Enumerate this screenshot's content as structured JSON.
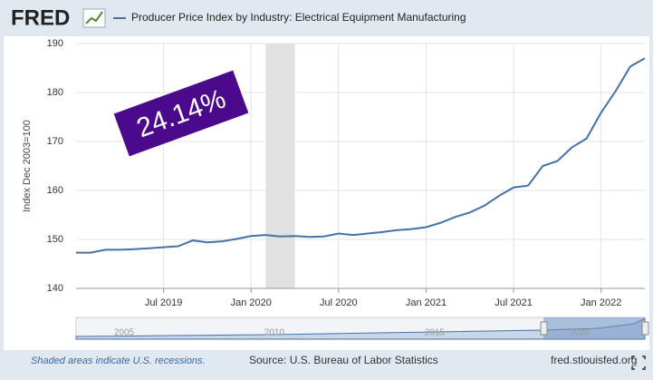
{
  "logo": "FRED",
  "chart_data": {
    "type": "line",
    "title": "Producer Price Index by Industry: Electrical Equipment Manufacturing",
    "y_label": "Index Dec 2003=100",
    "annotation": "24.14%",
    "x": [
      "2019-01",
      "2019-02",
      "2019-03",
      "2019-04",
      "2019-05",
      "2019-06",
      "2019-07",
      "2019-08",
      "2019-09",
      "2019-10",
      "2019-11",
      "2019-12",
      "2020-01",
      "2020-02",
      "2020-03",
      "2020-04",
      "2020-05",
      "2020-06",
      "2020-07",
      "2020-08",
      "2020-09",
      "2020-10",
      "2020-11",
      "2020-12",
      "2021-01",
      "2021-02",
      "2021-03",
      "2021-04",
      "2021-05",
      "2021-06",
      "2021-07",
      "2021-08",
      "2021-09",
      "2021-10",
      "2021-11",
      "2021-12",
      "2022-01",
      "2022-02",
      "2022-03",
      "2022-04"
    ],
    "series": [
      {
        "name": "Producer Price Index by Industry: Electrical Equipment Manufacturing",
        "color": "#4572a7",
        "values": [
          147.3,
          147.3,
          147.9,
          147.9,
          148.0,
          148.2,
          148.4,
          148.6,
          149.8,
          149.4,
          149.6,
          150.1,
          150.7,
          150.9,
          150.6,
          150.7,
          150.5,
          150.6,
          151.2,
          150.9,
          151.2,
          151.5,
          151.9,
          152.1,
          152.5,
          153.4,
          154.6,
          155.5,
          156.9,
          158.9,
          160.6,
          161.0,
          165.0,
          166.0,
          168.8,
          170.6,
          175.9,
          180.3,
          185.3,
          187.0
        ]
      }
    ],
    "xlim": [
      "2019-01",
      "2022-04"
    ],
    "xticks": [
      {
        "value": "2019-07",
        "label": "Jul 2019"
      },
      {
        "value": "2020-01",
        "label": "Jan 2020"
      },
      {
        "value": "2020-07",
        "label": "Jul 2020"
      },
      {
        "value": "2021-01",
        "label": "Jan 2021"
      },
      {
        "value": "2021-07",
        "label": "Jul 2021"
      },
      {
        "value": "2022-01",
        "label": "Jan 2022"
      }
    ],
    "ylim": [
      140,
      190
    ],
    "yticks": [
      140,
      150,
      160,
      170,
      180,
      190
    ],
    "grid": true,
    "recessions": [
      {
        "start": "2020-02",
        "end": "2020-04"
      }
    ],
    "navigator_labels": [
      "2005",
      "2010",
      "2015",
      "2020"
    ]
  },
  "footer": {
    "recession_note": "Shaded areas indicate U.S. recessions.",
    "source": "Source: U.S. Bureau of Labor Statistics",
    "site": "fred.stlouisfed.org"
  }
}
